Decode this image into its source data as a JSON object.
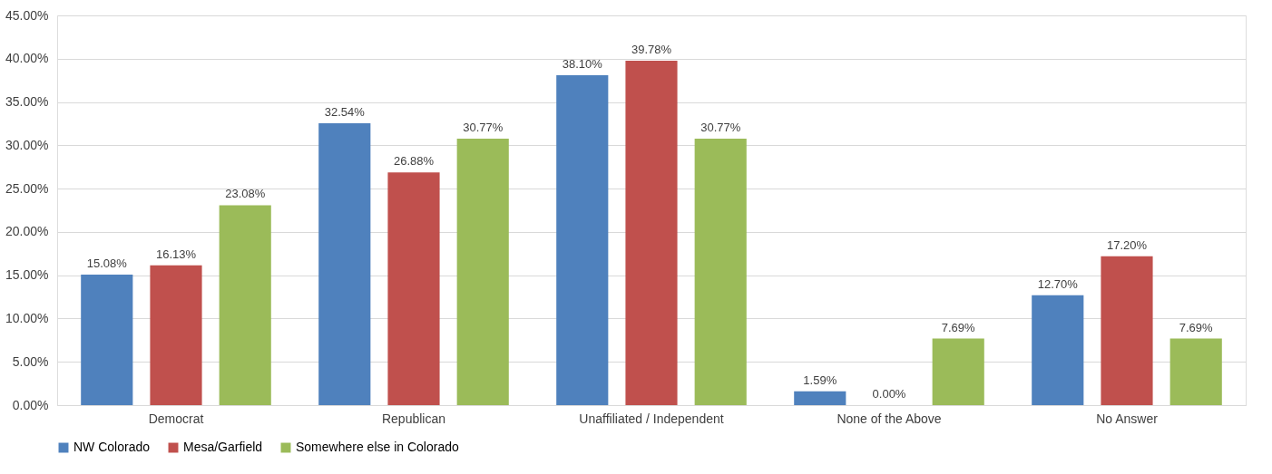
{
  "chart_data": {
    "type": "bar",
    "categories": [
      "Democrat",
      "Republican",
      "Unaffiliated / Independent",
      "None of the Above",
      "No Answer"
    ],
    "series": [
      {
        "name": "NW Colorado",
        "color": "#4f81bd",
        "values": [
          15.08,
          32.54,
          38.1,
          1.59,
          12.7
        ],
        "value_labels": [
          "15.08%",
          "32.54%",
          "38.10%",
          "1.59%",
          "12.70%"
        ]
      },
      {
        "name": "Mesa/Garfield",
        "color": "#c0504d",
        "values": [
          16.13,
          26.88,
          39.78,
          0.0,
          17.2
        ],
        "value_labels": [
          "16.13%",
          "26.88%",
          "39.78%",
          "0.00%",
          "17.20%"
        ]
      },
      {
        "name": "Somewhere else in Colorado",
        "color": "#9bbb59",
        "values": [
          23.08,
          30.77,
          30.77,
          7.69,
          7.69
        ],
        "value_labels": [
          "23.08%",
          "30.77%",
          "30.77%",
          "7.69%",
          "7.69%"
        ]
      }
    ],
    "ylim": [
      0,
      45
    ],
    "yticks": [
      {
        "value": 0,
        "label": "0.00%"
      },
      {
        "value": 5,
        "label": "5.00%"
      },
      {
        "value": 10,
        "label": "10.00%"
      },
      {
        "value": 15,
        "label": "15.00%"
      },
      {
        "value": 20,
        "label": "20.00%"
      },
      {
        "value": 25,
        "label": "25.00%"
      },
      {
        "value": 30,
        "label": "30.00%"
      },
      {
        "value": 35,
        "label": "35.00%"
      },
      {
        "value": 40,
        "label": "40.00%"
      },
      {
        "value": 45,
        "label": "45.00%"
      }
    ],
    "grid": "y",
    "legend": "bottom"
  }
}
